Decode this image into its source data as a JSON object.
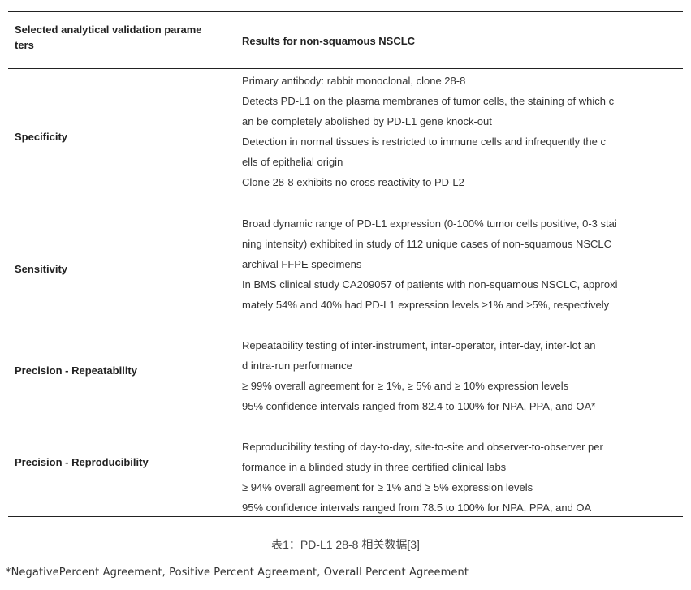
{
  "table": {
    "headers": [
      "Selected  analytical validation parame\nters",
      "Results  for non-squamous NSCLC"
    ],
    "rows": [
      {
        "parameter": "Specificity",
        "results": [
          "Primary  antibody: rabbit monoclonal, clone 28-8",
          "Detects PD-L1  on the plasma membranes of tumor cells, the staining of which c",
          "an be  completely abolished by PD-L1 gene knock-out",
          "Detection in  normal tissues is restricted to immune cells and infrequently the c",
          "ells of epithelial  origin",
          "Clone 28-8  exhibits no cross reactivity to PD-L2"
        ]
      },
      {
        "parameter": "Sensitivity",
        "results": [
          "Broad dynamic  range of PD-L1 expression (0-100% tumor cells positive, 0-3 stai",
          "ning  intensity) exhibited in study of 112 unique cases of non-squamous NSCLC",
          " archival FFPE specimens",
          "In BMS  clinical study CA209057 of patients with non-squamous NSCLC, approxi",
          "mately 54%  and 40% had PD-L1 expression levels ≥1%  and ≥5%,  respectively"
        ]
      },
      {
        "parameter": "Precision - Repeatability",
        "results": [
          "Repeatability  testing of inter-instrument, inter-operator, inter-day, inter-lot an",
          "d  intra-run performance",
          "≥ 99% overall  agreement for ≥ 1%, ≥ 5% and ≥ 10%  expression levels",
          "95% confidence  intervals ranged from 82.4 to 100% for NPA, PPA, and OA*"
        ]
      },
      {
        "parameter": "Precision -  Reproducibility",
        "results": [
          "Reproducibility  testing of day-to-day, site-to-site and observer-to-observer per",
          "formance in a  blinded study in three certified clinical labs",
          "≥ 94% overall  agreement for ≥ 1% and ≥ 5%  expression levels",
          "95% confidence  intervals ranged from 78.5 to 100% for NPA, PPA, and OA"
        ]
      }
    ]
  },
  "caption": "表1：PD-L1 28-8 相关数据[3]",
  "footnote": "*NegativePercent Agreement, Positive Percent Agreement, Overall Percent Agreement"
}
